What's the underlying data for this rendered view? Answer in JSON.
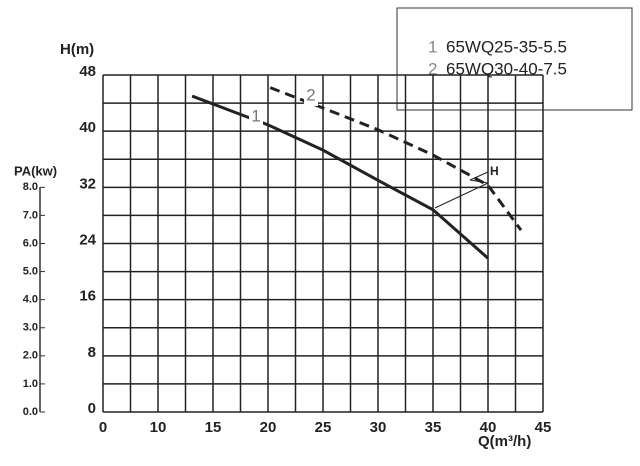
{
  "chart_data": {
    "type": "line",
    "y_label": "H(m)",
    "y2_label": "PA(kw)",
    "x_label": "Q(m³/h)",
    "xticks": [
      0,
      10,
      15,
      20,
      25,
      30,
      35,
      40,
      45
    ],
    "xgrid": [
      0,
      5,
      10,
      12.5,
      15,
      17.5,
      20,
      22.5,
      25,
      27.5,
      30,
      32.5,
      35,
      37.5,
      40,
      42.5,
      45
    ],
    "ylim": [
      0,
      48
    ],
    "yticks": [
      0,
      8,
      16,
      24,
      32,
      40,
      48
    ],
    "ygrid": [
      0,
      4,
      8,
      12,
      16,
      20,
      24,
      28,
      32,
      36,
      40,
      44,
      48
    ],
    "y2lim": [
      0,
      12
    ],
    "y2ticks": [
      {
        "value": 0,
        "label": "0.0"
      },
      {
        "value": 1,
        "label": "1.0"
      },
      {
        "value": 2,
        "label": "2.0"
      },
      {
        "value": 3,
        "label": "3.0"
      },
      {
        "value": 4,
        "label": "4.0"
      },
      {
        "value": 5,
        "label": "5.0"
      },
      {
        "value": 6,
        "label": "6.0"
      },
      {
        "value": 7,
        "label": "7.0"
      },
      {
        "value": 8,
        "label": "8.0"
      }
    ],
    "grid": true,
    "series": [
      {
        "label": "1",
        "name": "65WQ25-35-5.5",
        "color": "#222222",
        "dashed": false,
        "x": [
          13.1,
          20,
          25,
          30,
          35,
          40
        ],
        "values": [
          45,
          40.9,
          37.3,
          33,
          28.8,
          21.9
        ]
      },
      {
        "label": "2",
        "name": "65WQ30-40-7.5",
        "color": "#222222",
        "dashed": true,
        "x": [
          20.2,
          25,
          30,
          35,
          40,
          43
        ],
        "values": [
          46.2,
          43.3,
          40.2,
          36.6,
          32.3,
          25.9
        ]
      }
    ],
    "annotation": "H"
  }
}
